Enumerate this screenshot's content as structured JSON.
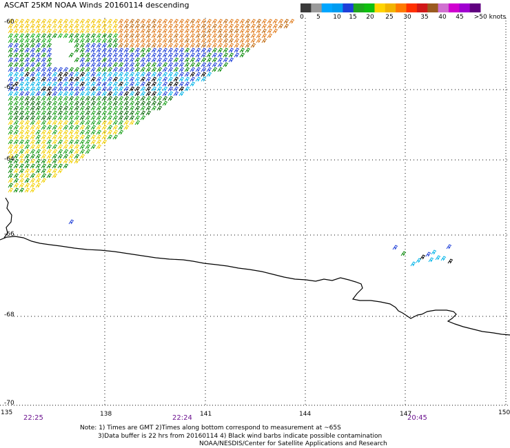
{
  "header": {
    "title": "ASCAT 25KM NOAA Winds 20160114 descending"
  },
  "legend": {
    "labels": [
      "0",
      "5",
      "10",
      "15",
      "20",
      "25",
      "30",
      "35",
      "40",
      "45",
      ">50 knots"
    ],
    "colors": [
      "#3a3a3a",
      "#9a9a9a",
      "#00a6ff",
      "#009cf0",
      "#1f3fd8",
      "#1fa61f",
      "#0fbf0f",
      "#ffd400",
      "#f2b400",
      "#ff7a00",
      "#ff3000",
      "#d01818",
      "#9a5a20",
      "#d070d0",
      "#d000d0",
      "#a000d0",
      "#600080"
    ]
  },
  "axes": {
    "lat_labels": [
      "-60",
      "-62",
      "-64",
      "-66",
      "-68",
      "-70"
    ],
    "lon_labels": [
      "135",
      "138",
      "141",
      "144",
      "147",
      "150"
    ]
  },
  "times": [
    "22:25",
    "22:24",
    "20:45"
  ],
  "notes": {
    "line1": "Note: 1) Times are GMT 2)Times along bottom correspond to measurement at ~65S",
    "line2": "3)Data buffer is 22 hrs from 20160114 4) Black wind barbs indicate possible contamination",
    "line3": "NOAA/NESDIS/Center for Satellite Applications and Research"
  },
  "palette": {
    "coast": "#000000",
    "grid": "#000000",
    "time_label": "#6a0f8e"
  }
}
